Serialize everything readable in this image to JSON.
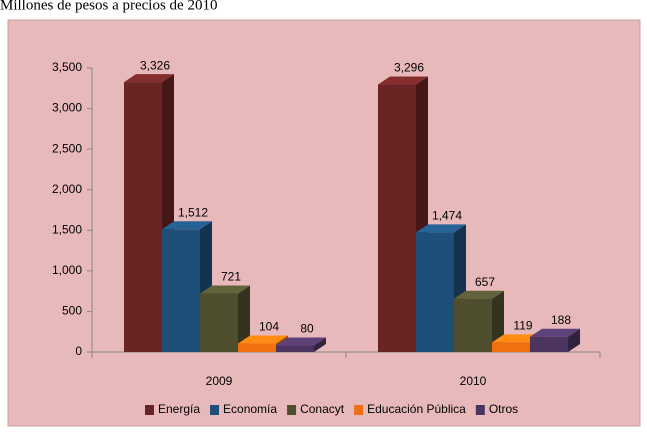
{
  "chart_data": {
    "type": "bar",
    "title": "Millones de pesos a precios de 2010",
    "categories": [
      "2009",
      "2010"
    ],
    "series": [
      {
        "name": "Energía",
        "color": "#6b2424",
        "values": [
          3326,
          3296
        ],
        "value_labels": [
          "3,326",
          "3,296"
        ]
      },
      {
        "name": "Economía",
        "color": "#1f4e79",
        "values": [
          1512,
          1474
        ],
        "value_labels": [
          "1,512",
          "1,474"
        ]
      },
      {
        "name": "Conacyt",
        "color": "#4f4f2f",
        "values": [
          721,
          657
        ]
      },
      {
        "name": "Educación Pública",
        "color": "#f07010",
        "values": [
          104,
          119
        ]
      },
      {
        "name": "Otros",
        "color": "#4b3460",
        "values": [
          80,
          188
        ]
      }
    ],
    "ylim": [
      0,
      3500
    ],
    "yticks": [
      0,
      500,
      {
        "value": 1000,
        "label": "1,000"
      },
      {
        "value": 1500,
        "label": "1,500"
      },
      {
        "value": 2000,
        "label": "2,000"
      },
      {
        "value": 2500,
        "label": "2,500"
      },
      {
        "value": 3000,
        "label": "3,000"
      },
      {
        "value": 3500,
        "label": "3,500"
      }
    ],
    "legend": "bottom"
  }
}
